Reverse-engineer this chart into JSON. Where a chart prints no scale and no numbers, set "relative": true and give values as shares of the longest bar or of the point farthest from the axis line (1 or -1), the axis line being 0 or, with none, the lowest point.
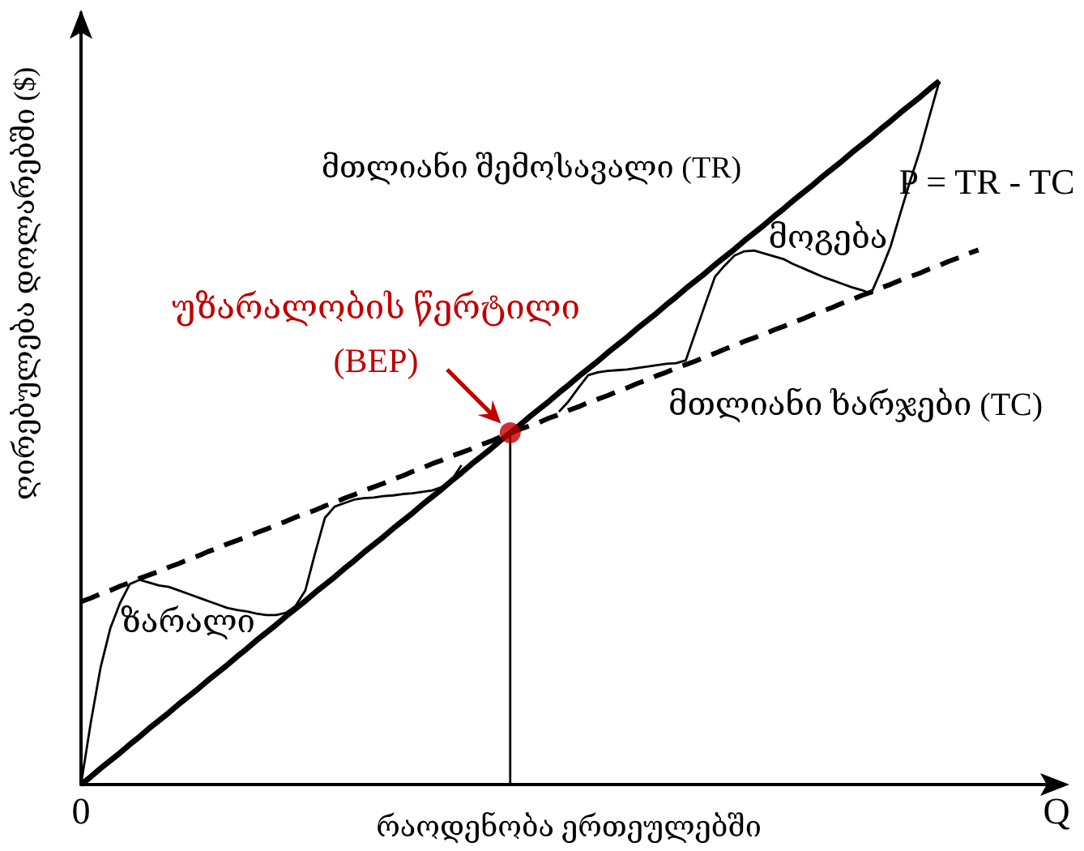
{
  "chart_data": {
    "type": "line",
    "relative": true,
    "xlabel": "რაოდენობა ერთეულებში",
    "ylabel": "ღირებულება დოლარებში ($)",
    "annotations": [
      "მოგება",
      "ზარალი"
    ],
    "categories": [
      "0",
      null,
      null,
      null,
      null,
      null,
      null,
      null,
      null,
      null,
      null,
      null,
      null,
      null,
      null,
      null,
      null,
      null,
      null,
      null,
      null,
      null,
      null,
      null,
      null,
      null,
      null,
      null,
      null,
      null,
      null,
      null,
      null,
      null,
      null,
      null,
      null,
      null,
      null,
      null,
      null,
      null,
      null,
      null,
      null,
      null,
      null,
      null,
      null,
      null,
      null,
      null,
      null,
      null,
      null,
      null,
      null,
      null,
      null,
      null,
      null,
      null,
      null,
      null,
      null,
      null,
      null,
      null,
      null,
      null,
      null,
      null,
      null,
      null,
      null,
      null,
      null,
      null,
      null,
      null,
      null,
      null,
      null,
      null,
      null,
      null,
      null,
      null,
      null,
      null,
      null,
      null,
      null,
      null,
      null,
      null,
      null,
      null,
      null,
      null,
      "Q"
    ],
    "series": [
      {
        "name": "მთლიანი შემოსავალი (TR)",
        "color": "#000000",
        "values": [
          0,
          0.011,
          0.023,
          0.034,
          0.045,
          0.057,
          0.068,
          0.08,
          0.091,
          0.102,
          0.114,
          0.125,
          0.136,
          0.148,
          0.159,
          0.17,
          0.182,
          0.193,
          0.205,
          0.216,
          0.227,
          0.239,
          0.25,
          0.261,
          0.273,
          0.284,
          0.295,
          0.307,
          0.318,
          0.33,
          0.341,
          0.352,
          0.364,
          0.375,
          0.386,
          0.398,
          0.409,
          0.42,
          0.432,
          0.443,
          0.455,
          0.466,
          0.477,
          0.489,
          0.5,
          0.511,
          0.523,
          0.534,
          0.545,
          0.557,
          0.568,
          0.58,
          0.591,
          0.602,
          0.614,
          0.625,
          0.636,
          0.648,
          0.659,
          0.67,
          0.682,
          0.693,
          0.705,
          0.716,
          0.727,
          0.739,
          0.75,
          0.761,
          0.773,
          0.784,
          0.795,
          0.807,
          0.818,
          0.83,
          0.841,
          0.852,
          0.864,
          0.875,
          0.886,
          0.898,
          0.909,
          0.92,
          0.932,
          0.943,
          0.955,
          0.966,
          0.977,
          0.989,
          1,
          null,
          null,
          null,
          null,
          null,
          null,
          null,
          null,
          null,
          null,
          null,
          null
        ]
      },
      {
        "name": "მთლიანი ხარჯები (TC)",
        "color": "#000000",
        "line_style": "dashed",
        "values": [
          0.26,
          0.265,
          0.271,
          0.276,
          0.282,
          0.287,
          0.293,
          0.298,
          0.303,
          0.309,
          0.314,
          0.32,
          0.325,
          0.331,
          0.336,
          0.342,
          0.347,
          0.352,
          0.358,
          0.363,
          0.369,
          0.374,
          0.38,
          0.385,
          0.39,
          0.396,
          0.401,
          0.407,
          0.412,
          0.418,
          0.423,
          0.428,
          0.434,
          0.439,
          0.445,
          0.45,
          0.456,
          0.461,
          0.467,
          0.472,
          0.477,
          0.483,
          0.488,
          0.494,
          0.499,
          0.505,
          0.51,
          0.515,
          0.521,
          0.526,
          0.532,
          0.537,
          0.543,
          0.548,
          0.553,
          0.559,
          0.564,
          0.57,
          0.575,
          0.581,
          0.586,
          0.592,
          0.597,
          0.602,
          0.608,
          0.613,
          0.619,
          0.624,
          0.63,
          0.635,
          0.64,
          0.646,
          0.651,
          0.657,
          0.662,
          0.668,
          0.673,
          0.678,
          0.684,
          0.689,
          0.695,
          0.7,
          0.706,
          0.711,
          0.717,
          0.722,
          0.727,
          0.733,
          0.738,
          0.744,
          0.749,
          0.755,
          0.76,
          null,
          null,
          null,
          null,
          null,
          null,
          null,
          null
        ]
      },
      {
        "name": "P = TR - TC",
        "color": "#000000",
        "values": [
          0,
          0.088,
          0.166,
          0.222,
          0.258,
          0.285,
          0.291,
          0.287,
          0.283,
          0.281,
          0.276,
          0.271,
          0.266,
          0.261,
          0.256,
          0.251,
          0.248,
          0.246,
          0.243,
          0.241,
          0.241,
          0.244,
          0.254,
          0.276,
          0.329,
          0.379,
          0.395,
          0.4,
          0.405,
          0.407,
          0.408,
          0.41,
          0.411,
          0.413,
          0.414,
          0.416,
          0.418,
          0.423,
          0.433,
          0.454,
          null,
          null,
          null,
          null,
          null,
          null,
          null,
          null,
          null,
          0.53,
          0.545,
          0.564,
          0.582,
          0.586,
          0.588,
          0.589,
          0.59,
          0.592,
          0.594,
          0.596,
          0.598,
          0.599,
          0.603,
          0.643,
          0.683,
          0.722,
          0.738,
          0.752,
          0.758,
          0.759,
          0.755,
          0.751,
          0.747,
          0.74,
          0.734,
          0.728,
          0.722,
          0.717,
          0.712,
          0.707,
          0.703,
          0.698,
          0.73,
          0.765,
          0.812,
          0.858,
          0.901,
          0.951,
          1,
          null,
          null,
          null,
          null,
          null,
          null,
          null,
          null,
          null,
          null,
          null,
          null
        ]
      },
      {
        "type": "lollipop",
        "name": "უზარალობის წერტილი (BEP)",
        "color": "#c00000",
        "values": [
          null,
          null,
          null,
          null,
          null,
          null,
          null,
          null,
          null,
          null,
          null,
          null,
          null,
          null,
          null,
          null,
          null,
          null,
          null,
          null,
          null,
          null,
          null,
          null,
          null,
          null,
          null,
          null,
          null,
          null,
          null,
          null,
          null,
          null,
          null,
          null,
          null,
          null,
          null,
          null,
          null,
          null,
          null,
          null,
          0.5,
          null,
          null,
          null,
          null,
          null,
          null,
          null,
          null,
          null,
          null,
          null,
          null,
          null,
          null,
          null,
          null,
          null,
          null,
          null,
          null,
          null,
          null,
          null,
          null,
          null,
          null,
          null,
          null,
          null,
          null,
          null,
          null,
          null,
          null,
          null,
          null,
          null,
          null,
          null,
          null,
          null,
          null,
          null,
          null,
          null,
          null,
          null,
          null,
          null,
          null,
          null,
          null,
          null,
          null,
          null,
          null
        ]
      }
    ]
  }
}
